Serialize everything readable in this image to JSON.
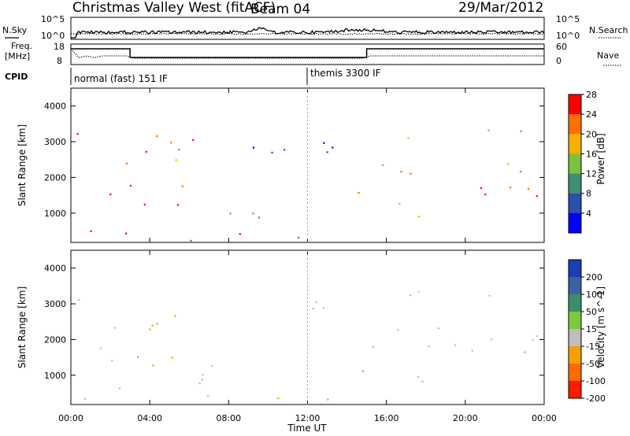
{
  "header": {
    "title": "Christmas Valley West (fitACF)",
    "beam": "Beam 04",
    "date": "29/Mar/2012"
  },
  "top_panels": {
    "nsky_label": "N.Sky",
    "nsearch_label": "N.Search",
    "noise_ticks": [
      "10^5",
      "10^0"
    ],
    "freq_label": [
      "Freq.",
      "[MHz]"
    ],
    "freq_ticks": [
      "18",
      "8"
    ],
    "nave_label": "Nave",
    "nave_ticks": [
      "60",
      "0"
    ],
    "cpid_label": "CPID",
    "cpid_segments": [
      {
        "start_hour": 0,
        "label": "normal (fast) 151 IF"
      },
      {
        "start_hour": 12,
        "label": "themis 3300 IF"
      }
    ]
  },
  "axes": {
    "xlabel": "Time UT",
    "ylabel": "Slant Range [km]",
    "x_ticks": [
      "00:00",
      "04:00",
      "08:00",
      "12:00",
      "16:00",
      "20:00",
      "00:00"
    ],
    "y_ticks": [
      "1000",
      "2000",
      "3000",
      "4000"
    ]
  },
  "chart_data": [
    {
      "type": "heatmap",
      "name": "power",
      "x_range_hours": [
        0,
        24
      ],
      "y_range_km": [
        180,
        4500
      ],
      "colorbar_label": "Power [dB]",
      "colorbar_ticks": [
        "4",
        "8",
        "12",
        "16",
        "20",
        "24",
        "28"
      ],
      "colorbar_colors": [
        "#0000ff",
        "#2a4fb0",
        "#3e8f78",
        "#7fc040",
        "#f5b000",
        "#ff7000",
        "#ff0000"
      ],
      "scatter_regions": [
        {
          "t": [
            0.0,
            3.0
          ],
          "r": [
            1350,
            2000
          ],
          "level": 0.93
        },
        {
          "t": [
            0.0,
            1.7
          ],
          "r": [
            2800,
            3300
          ],
          "level": 0.8
        },
        {
          "t": [
            1.8,
            3.0
          ],
          "r": [
            1600,
            2700
          ],
          "level": 0.82
        },
        {
          "t": [
            3.0,
            6.0
          ],
          "r": [
            1100,
            1900
          ],
          "level": 0.86
        },
        {
          "t": [
            3.0,
            5.8
          ],
          "r": [
            2300,
            3500
          ],
          "level": 0.8
        },
        {
          "t": [
            4.5,
            6.2
          ],
          "r": [
            2700,
            3500
          ],
          "level": 0.8
        },
        {
          "t": [
            0.3,
            3.3
          ],
          "r": [
            300,
            800
          ],
          "level": 0.9
        },
        {
          "t": [
            7.0,
            9.6
          ],
          "r": [
            350,
            1300
          ],
          "level": 0.92
        },
        {
          "t": [
            9.0,
            10.3
          ],
          "r": [
            700,
            1200
          ],
          "level": 0.45
        },
        {
          "t": [
            9.2,
            13.0
          ],
          "r": [
            2600,
            3500
          ],
          "level": 0.12
        },
        {
          "t": [
            12.0,
            14.0
          ],
          "r": [
            2300,
            3100
          ],
          "level": 0.1
        },
        {
          "t": [
            14.0,
            15.0
          ],
          "r": [
            1100,
            2200
          ],
          "level": 0.85
        },
        {
          "t": [
            15.0,
            24.0
          ],
          "r": [
            1400,
            1900
          ],
          "level": 0.92
        },
        {
          "t": [
            15.0,
            24.0
          ],
          "r": [
            1900,
            2400
          ],
          "level": 0.7
        },
        {
          "t": [
            16.0,
            18.0
          ],
          "r": [
            600,
            1400
          ],
          "level": 0.7
        },
        {
          "t": [
            20.5,
            21.5
          ],
          "r": [
            500,
            800
          ],
          "level": 0.95
        },
        {
          "t": [
            17.0,
            24.0
          ],
          "r": [
            3000,
            3400
          ],
          "level": 0.6
        },
        {
          "t": [
            6.0,
            14.5
          ],
          "r": [
            200,
            400
          ],
          "level": 0.3
        }
      ]
    },
    {
      "type": "heatmap",
      "name": "velocity",
      "x_range_hours": [
        0,
        24
      ],
      "y_range_km": [
        180,
        4500
      ],
      "colorbar_label": "Velocity [m s^-1]",
      "colorbar_ticks": [
        "200",
        "100",
        "50",
        "15",
        "-15",
        "-50",
        "-100",
        "-200"
      ],
      "colorbar_colors": [
        "#1a3fb0",
        "#3e60a0",
        "#3a8f6a",
        "#7fc840",
        "#bebebe",
        "#f5a000",
        "#ff6a00",
        "#ff1a00"
      ],
      "scatter_regions": [
        {
          "t": [
            0.0,
            3.0
          ],
          "r": [
            1350,
            2000
          ],
          "level": "ground"
        },
        {
          "t": [
            0.0,
            1.7
          ],
          "r": [
            2800,
            3300
          ],
          "level": "ground"
        },
        {
          "t": [
            1.8,
            3.0
          ],
          "r": [
            1600,
            2700
          ],
          "level": "ground"
        },
        {
          "t": [
            3.0,
            6.0
          ],
          "r": [
            1100,
            1900
          ],
          "level": "orange"
        },
        {
          "t": [
            3.0,
            5.8
          ],
          "r": [
            2300,
            3500
          ],
          "level": "orange"
        },
        {
          "t": [
            0.3,
            3.3
          ],
          "r": [
            300,
            800
          ],
          "level": "ground"
        },
        {
          "t": [
            5.5,
            10.0
          ],
          "r": [
            350,
            1300
          ],
          "level": "ground"
        },
        {
          "t": [
            9.5,
            13.5
          ],
          "r": [
            2700,
            3400
          ],
          "level": "ground"
        },
        {
          "t": [
            14.0,
            15.0
          ],
          "r": [
            1100,
            2200
          ],
          "level": "green"
        },
        {
          "t": [
            15.0,
            24.0
          ],
          "r": [
            1400,
            2400
          ],
          "level": "ground"
        },
        {
          "t": [
            16.0,
            18.0
          ],
          "r": [
            600,
            1400
          ],
          "level": "ground"
        },
        {
          "t": [
            20.5,
            21.5
          ],
          "r": [
            500,
            800
          ],
          "level": "ground"
        },
        {
          "t": [
            17.0,
            24.0
          ],
          "r": [
            3000,
            3400
          ],
          "level": "ground"
        },
        {
          "t": [
            6.0,
            14.5
          ],
          "r": [
            200,
            400
          ],
          "level": "orange"
        }
      ]
    }
  ]
}
